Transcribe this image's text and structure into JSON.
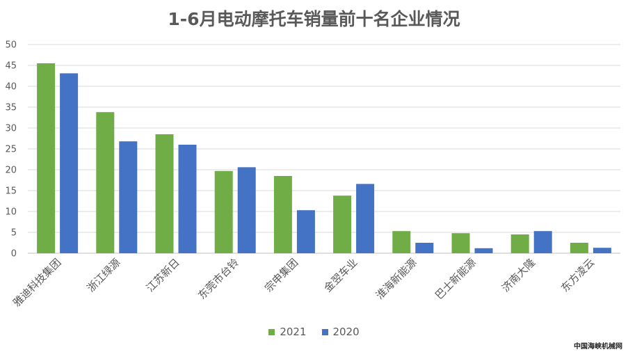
{
  "chart_data": {
    "type": "bar",
    "title": "1-6月电动摩托车销量前十名企业情况",
    "categories": [
      "雅迪科技集团",
      "浙江绿源",
      "江苏新日",
      "东莞市台铃",
      "宗申集团",
      "金翌车业",
      "淮海新能源",
      "巴士新能源",
      "济南大隆",
      "东方凌云"
    ],
    "series": [
      {
        "name": "2021",
        "color": "#70ad47",
        "values": [
          45.5,
          33.8,
          28.5,
          19.7,
          18.5,
          13.8,
          5.3,
          4.8,
          4.5,
          2.5
        ]
      },
      {
        "name": "2020",
        "color": "#4472c4",
        "values": [
          43.1,
          26.8,
          26.0,
          20.6,
          10.3,
          16.6,
          2.5,
          1.2,
          5.3,
          1.3
        ]
      }
    ],
    "ylim": [
      0,
      50
    ],
    "yticks": [
      0,
      5,
      10,
      15,
      20,
      25,
      30,
      35,
      40,
      45,
      50
    ],
    "grid": true,
    "legend": "bottom"
  },
  "watermark": "中国海峡机械网"
}
